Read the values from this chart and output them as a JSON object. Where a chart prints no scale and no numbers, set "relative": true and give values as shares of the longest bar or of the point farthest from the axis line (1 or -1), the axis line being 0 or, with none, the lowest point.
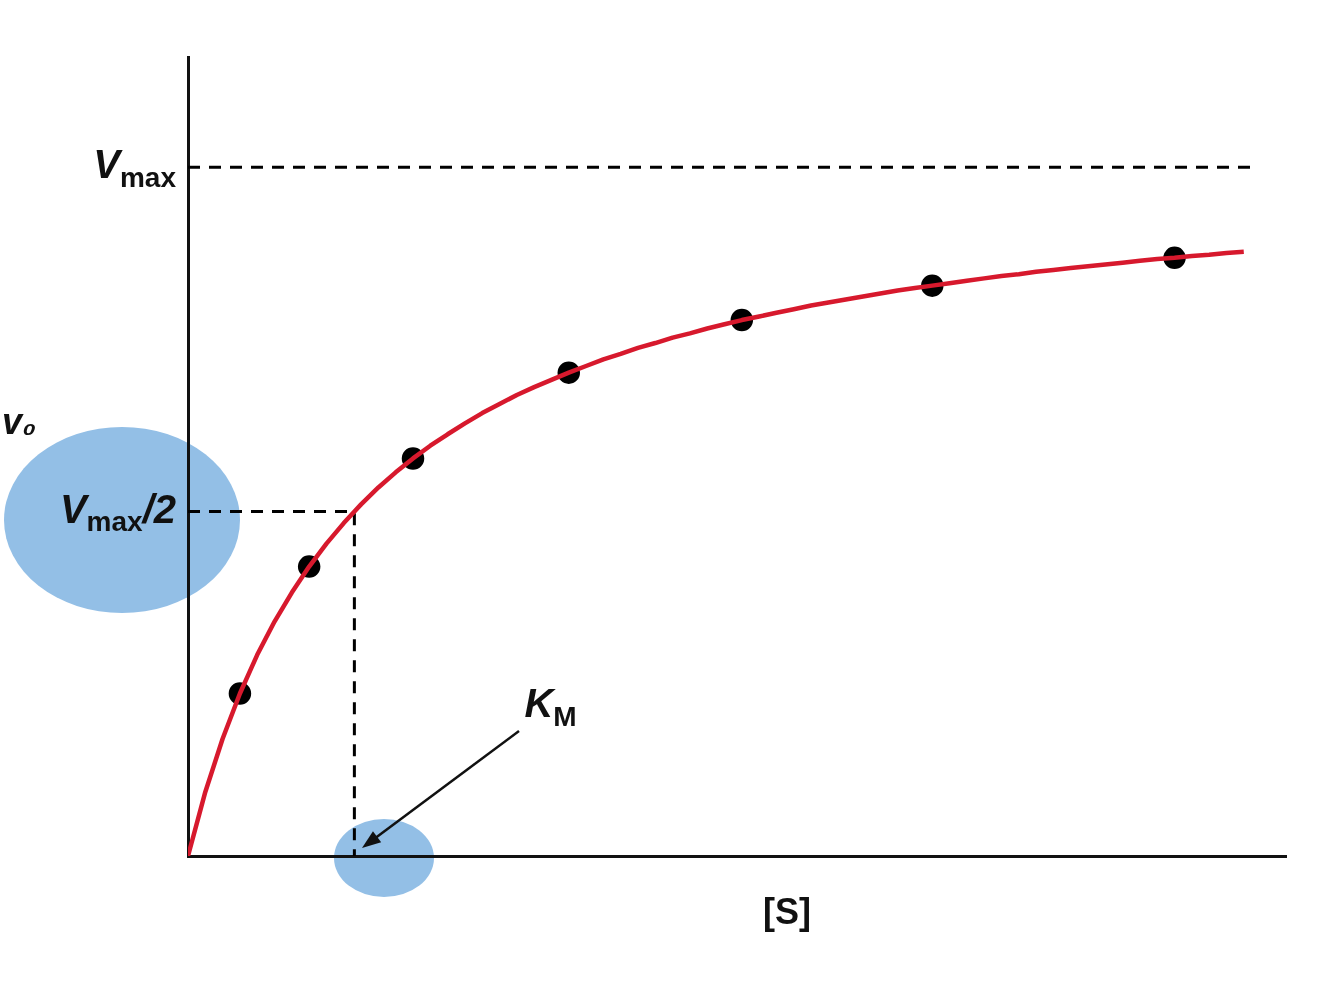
{
  "chart_data": {
    "type": "line",
    "relative": true,
    "xlabel": "[S]",
    "ylabel": "v₀",
    "categories": [
      null,
      null,
      null,
      null,
      null,
      null,
      null,
      null,
      null,
      null,
      null,
      null,
      null,
      null,
      null,
      null,
      null,
      null,
      null,
      null,
      null,
      null,
      null,
      null,
      null,
      null,
      null,
      null,
      null,
      null,
      null,
      null,
      null,
      null,
      null,
      null,
      null,
      null,
      null,
      null,
      null,
      null,
      null,
      null,
      null,
      null,
      null,
      null,
      null,
      null,
      null,
      null,
      null,
      null,
      null,
      null,
      null,
      null,
      null,
      null,
      null,
      null
    ],
    "series": [
      {
        "type": "line",
        "color": "#d7192d",
        "marker": "none",
        "values": [
          0,
          0.106,
          0.194,
          0.269,
          0.333,
          0.388,
          0.436,
          0.479,
          0.517,
          0.551,
          0.582,
          0.61,
          0.635,
          0.658,
          0.679,
          0.698,
          0.716,
          0.733,
          0.748,
          0.763,
          0.776,
          0.788,
          0.8,
          0.811,
          0.822,
          0.831,
          0.841,
          0.849,
          0.858,
          0.865,
          0.873,
          0.88,
          0.887,
          0.893,
          0.899,
          0.905,
          0.911,
          0.916,
          0.921,
          0.926,
          0.931,
          0.936,
          0.94,
          0.944,
          0.948,
          0.952,
          0.956,
          0.96,
          0.963,
          0.967,
          0.97,
          0.973,
          0.976,
          0.979,
          0.982,
          0.985,
          0.988,
          0.99,
          0.993,
          0.995,
          0.998,
          1
        ]
      },
      {
        "type": "line",
        "color": "#000000",
        "marker": "circle",
        "values": [
          null,
          null,
          null,
          0.269,
          null,
          null,
          null,
          0.479,
          null,
          null,
          null,
          null,
          null,
          0.658,
          null,
          null,
          null,
          null,
          null,
          null,
          null,
          null,
          0.8,
          null,
          null,
          null,
          null,
          null,
          null,
          null,
          null,
          null,
          0.887,
          null,
          null,
          null,
          null,
          null,
          null,
          null,
          null,
          null,
          null,
          0.944,
          null,
          null,
          null,
          null,
          null,
          null,
          null,
          null,
          null,
          null,
          null,
          null,
          null,
          0.99,
          null,
          null,
          null,
          null
        ]
      }
    ],
    "ref_lines": [
      {
        "axis": "y",
        "value": 1.14,
        "label": "V$_{max}$",
        "line_style": "dashed",
        "color": "#000000"
      },
      {
        "axis": "y",
        "value": 0.57,
        "label": "V$_{max}$/2",
        "line_style": "dashed",
        "color": "#000000"
      }
    ],
    "annotations": [
      "K$_{M}$"
    ]
  }
}
